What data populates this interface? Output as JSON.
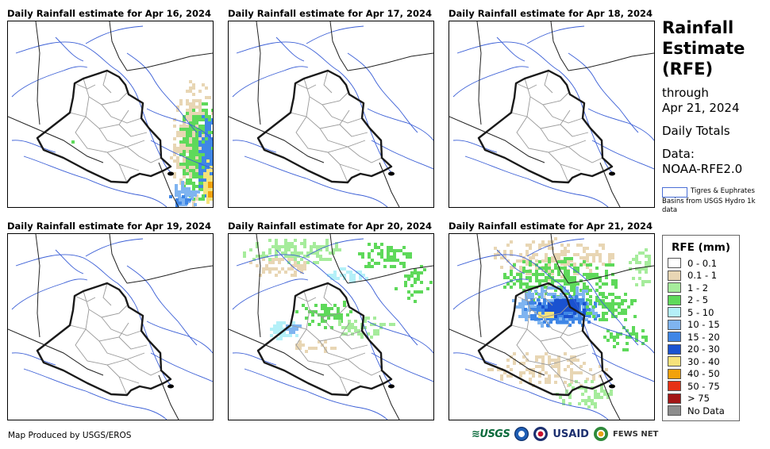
{
  "panels": [
    {
      "title": "Daily Rainfall estimate for Apr 16, 2024",
      "rain": "apr16"
    },
    {
      "title": "Daily Rainfall estimate for Apr 17, 2024",
      "rain": "none"
    },
    {
      "title": "Daily Rainfall estimate for Apr 18, 2024",
      "rain": "none"
    },
    {
      "title": "Daily Rainfall estimate for Apr 19, 2024",
      "rain": "none"
    },
    {
      "title": "Daily Rainfall estimate for Apr 20, 2024",
      "rain": "apr20"
    },
    {
      "title": "Daily Rainfall estimate for Apr 21, 2024",
      "rain": "apr21"
    }
  ],
  "sidebar": {
    "title_line1": "Rainfall",
    "title_line2": "Estimate",
    "title_line3": "(RFE)",
    "through_label": "through",
    "through_date": "Apr 21, 2024",
    "period": "Daily Totals",
    "data_label": "Data:",
    "data_source": "NOAA-RFE2.0",
    "basin_legend": "Tigres & Euphrates Basins from USGS Hydro 1k data"
  },
  "legend": {
    "title": "RFE (mm)",
    "items": [
      {
        "label": "0 - 0.1",
        "color": "#ffffff"
      },
      {
        "label": "0.1 - 1",
        "color": "#e8d6b4"
      },
      {
        "label": "1 - 2",
        "color": "#a6ec9c"
      },
      {
        "label": "2 - 5",
        "color": "#5ed95a"
      },
      {
        "label": "5 - 10",
        "color": "#b4f0f8"
      },
      {
        "label": "10 - 15",
        "color": "#7fb4f0"
      },
      {
        "label": "15 - 20",
        "color": "#3f86e6"
      },
      {
        "label": "20 - 30",
        "color": "#1a52d0"
      },
      {
        "label": "30 - 40",
        "color": "#f6e27a"
      },
      {
        "label": "40 - 50",
        "color": "#f2a20c"
      },
      {
        "label": "50 - 75",
        "color": "#e63215"
      },
      {
        "label": "> 75",
        "color": "#a31616"
      },
      {
        "label": "No Data",
        "color": "#8c8c8c"
      }
    ]
  },
  "footer": {
    "credit": "Map Produced by USGS/EROS",
    "logo_usgs": "≋USGS",
    "logo_usaid": "USAID",
    "logo_fews": "FEWS NET"
  },
  "colors": {
    "river": "#3b5fd6",
    "border": "#1a1a1a",
    "province": "#9a9a9a",
    "country": "#222222"
  }
}
